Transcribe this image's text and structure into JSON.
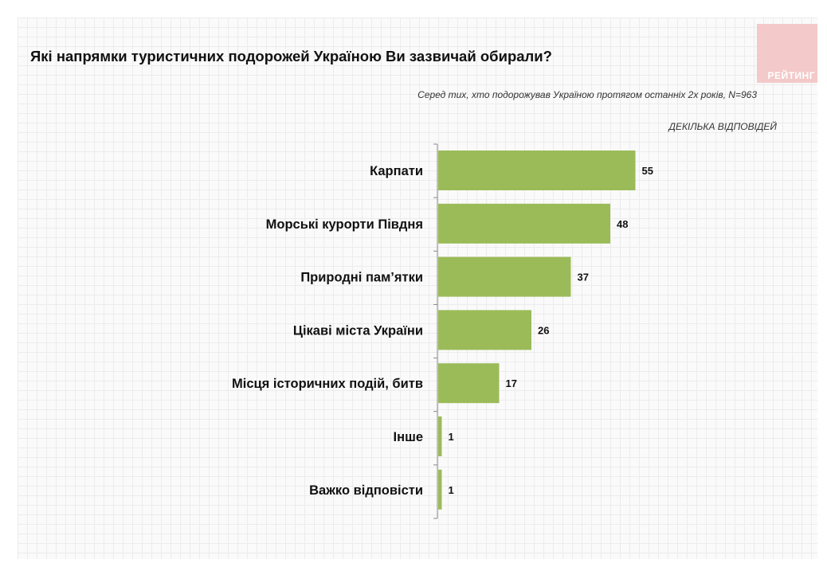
{
  "title": "Які напрямки туристичних подорожей Україною Ви зазвичай обирали?",
  "subtitle": "Серед тих, хто подорожував Україною протягом останніх 2х років, N=963",
  "note": "ДЕКІЛЬКА ВІДПОВІДЕЙ",
  "logo_text": "РЕЙТИНГ",
  "colors": {
    "bar": "#9bbb59",
    "axis": "#888888",
    "label": "#111111"
  },
  "chart_data": {
    "type": "bar",
    "orientation": "horizontal",
    "categories": [
      "Карпати",
      "Морські курорти Півдня",
      "Природні пам’ятки",
      "Цікаві міста України",
      "Місця історичних подій, битв",
      "Інше",
      "Важко відповісти"
    ],
    "values": [
      55,
      48,
      37,
      26,
      17,
      1,
      1
    ],
    "xlim": [
      0,
      100
    ],
    "data_labels": true,
    "grid": false
  }
}
